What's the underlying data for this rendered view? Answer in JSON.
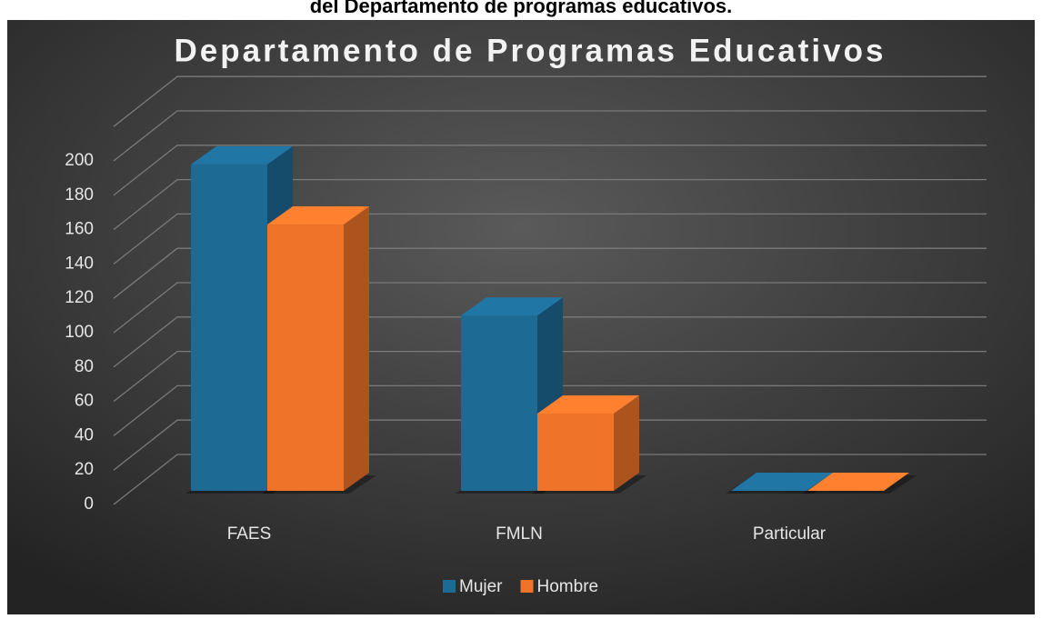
{
  "caption": "del Departamento de programas educativos.",
  "chart_data": {
    "type": "bar3d",
    "title": "Departamento de Programas Educativos",
    "categories": [
      "FAES",
      "FMLN",
      "Particular"
    ],
    "series": [
      {
        "name": "Mujer",
        "color": "#1d6a94",
        "values": [
          190,
          102,
          0
        ]
      },
      {
        "name": "Hombre",
        "color": "#f0732a",
        "values": [
          155,
          45,
          0
        ]
      }
    ],
    "ylim": [
      0,
      220
    ],
    "yticks": [
      0,
      20,
      40,
      60,
      80,
      100,
      120,
      140,
      160,
      180,
      200
    ],
    "grid": true,
    "legend": "bottom"
  }
}
